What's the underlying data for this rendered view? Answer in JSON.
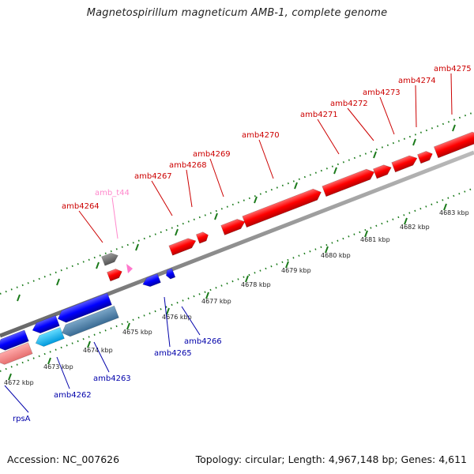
{
  "title": "Magnetospirillum magneticum AMB-1, complete genome",
  "footer": {
    "accession": "Accession: NC_007626",
    "summary": "Topology: circular; Length: 4,967,148 bp; Genes: 4,611"
  },
  "colors": {
    "forward_gene": "#ff0000",
    "reverse_gene": "#0000ff",
    "reverse_gene_alt": "#00aaff",
    "forward_label": "#cc0000",
    "reverse_label": "#0000aa",
    "trna": "#ff88cc",
    "backbone": "#888888",
    "tick": "#1a7a1a"
  },
  "ticks": [
    {
      "label": "4672 kbp"
    },
    {
      "label": "4673 kbp"
    },
    {
      "label": "4674 kbp"
    },
    {
      "label": "4675 kbp"
    },
    {
      "label": "4676 kbp"
    },
    {
      "label": "4677 kbp"
    },
    {
      "label": "4678 kbp"
    },
    {
      "label": "4679 kbp"
    },
    {
      "label": "4680 kbp"
    },
    {
      "label": "4681 kbp"
    },
    {
      "label": "4682 kbp"
    },
    {
      "label": "4683 kbp"
    }
  ],
  "genes_forward": [
    {
      "name": "amb4264"
    },
    {
      "name": "amb_t44",
      "kind": "trna"
    },
    {
      "name": "amb4267"
    },
    {
      "name": "amb4268"
    },
    {
      "name": "amb4269"
    },
    {
      "name": "amb4270"
    },
    {
      "name": "amb4271"
    },
    {
      "name": "amb4272"
    },
    {
      "name": "amb4273"
    },
    {
      "name": "amb4274"
    },
    {
      "name": "amb4275"
    }
  ],
  "genes_reverse": [
    {
      "name": "rpsA"
    },
    {
      "name": "amb4262"
    },
    {
      "name": "amb4263"
    },
    {
      "name": "amb4265"
    },
    {
      "name": "amb4266"
    }
  ]
}
